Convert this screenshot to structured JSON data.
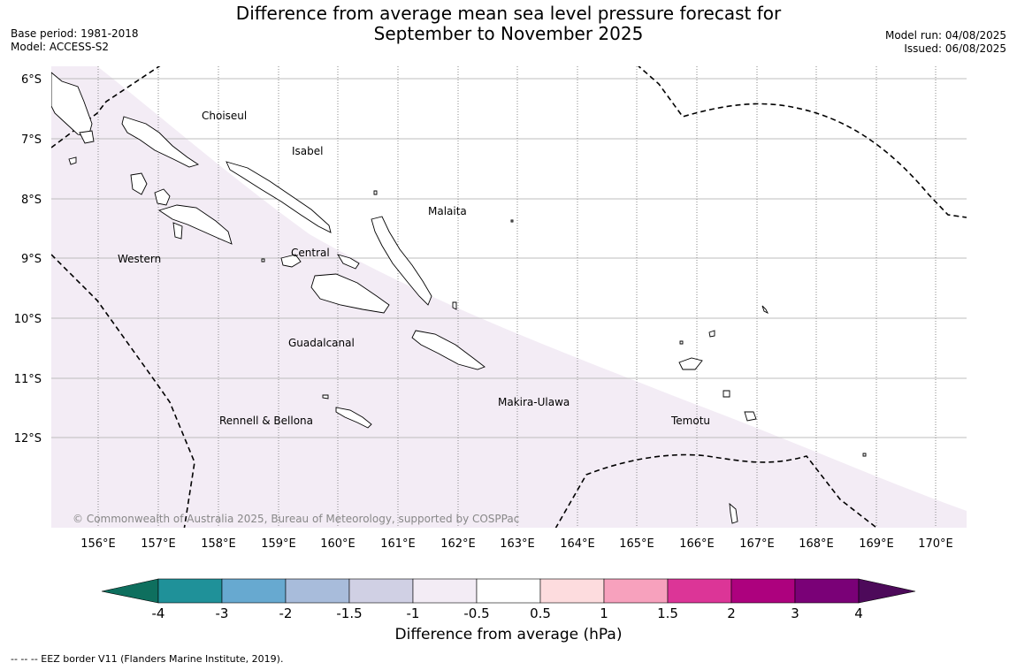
{
  "title": {
    "line1": "Difference from average mean sea level pressure forecast for",
    "line2": "September to November 2025"
  },
  "meta_left": {
    "base_period": "Base period: 1981-2018",
    "model": "Model: ACCESS-S2"
  },
  "meta_right": {
    "model_run": "Model run: 04/08/2025",
    "issued": "Issued: 06/08/2025"
  },
  "map": {
    "latitude_labels": [
      "6°S",
      "7°S",
      "8°S",
      "9°S",
      "10°S",
      "11°S",
      "12°S"
    ],
    "longitude_labels": [
      "156°E",
      "157°E",
      "158°E",
      "159°E",
      "160°E",
      "161°E",
      "162°E",
      "163°E",
      "164°E",
      "165°E",
      "166°E",
      "167°E",
      "168°E",
      "169°E",
      "170°E"
    ],
    "region_labels": {
      "choiseul": "Choiseul",
      "isabel": "Isabel",
      "malaita": "Malaita",
      "western": "Western",
      "central": "Central",
      "guadalcanal": "Guadalcanal",
      "makira_ulawa": "Makira-Ulawa",
      "temotu": "Temotu",
      "rennell_bellona": "Rennell & Bellona"
    },
    "copyright": "© Commonwealth of Australia 2025, Bureau of Meteorology, supported by COSPPac",
    "shaded_category": "-1 to -0.5",
    "shading_color": "#f3ecf5"
  },
  "colorbar": {
    "tick_labels": [
      "-4",
      "-3",
      "-2",
      "-1.5",
      "-1",
      "-0.5",
      "0.5",
      "1",
      "1.5",
      "2",
      "3",
      "4"
    ],
    "colors": [
      "#0e6f5e",
      "#1f9199",
      "#67a9d0",
      "#a8bcdb",
      "#d0d0e4",
      "#f3ecf5",
      "#ffffff",
      "#fddcde",
      "#f7a1bd",
      "#dc3597",
      "#ad017e",
      "#7a0177",
      "#4d0a5a"
    ],
    "label": "Difference from average (hPa)"
  },
  "legend_note": "--  --  -- EEZ border V11 (Flanders Marine Institute, 2019)."
}
